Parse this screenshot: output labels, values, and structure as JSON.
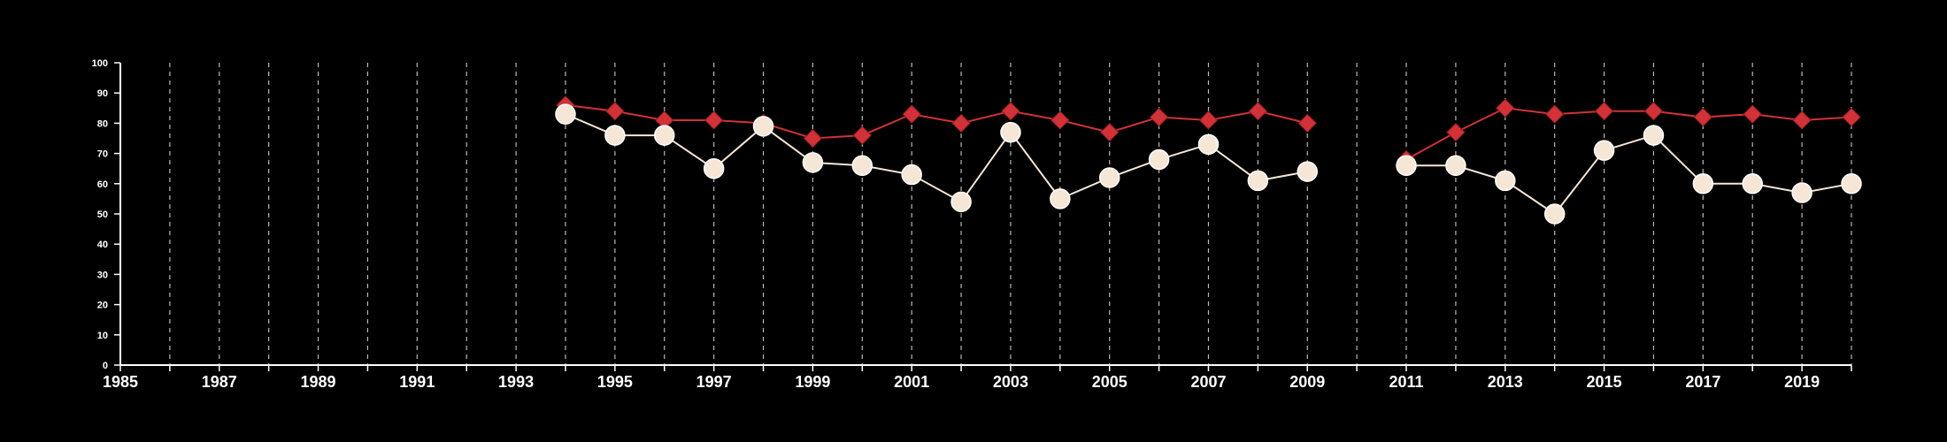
{
  "chart_data": {
    "type": "line",
    "title": "",
    "xlabel": "",
    "ylabel": "",
    "xlim": [
      1985,
      2020
    ],
    "ylim": [
      0,
      100
    ],
    "x_ticks": [
      1985,
      1987,
      1989,
      1991,
      1993,
      1995,
      1997,
      1999,
      2001,
      2003,
      2005,
      2007,
      2009,
      2011,
      2013,
      2015,
      2017,
      2019
    ],
    "y_ticks": [
      0,
      10,
      20,
      30,
      40,
      50,
      60,
      70,
      80,
      90,
      100
    ],
    "grid": "vertical dashed lines at every year",
    "legend": "none",
    "series": [
      {
        "marker": "diamond",
        "color": "#d03238",
        "x": [
          1994,
          1995,
          1996,
          1997,
          1998,
          1999,
          2000,
          2001,
          2002,
          2003,
          2004,
          2005,
          2006,
          2007,
          2008,
          2009,
          2011,
          2012,
          2013,
          2014,
          2015,
          2016,
          2017,
          2018,
          2019,
          2020
        ],
        "values": [
          86,
          84,
          81,
          81,
          80,
          75,
          76,
          83,
          80,
          84,
          81,
          77,
          82,
          81,
          84,
          80,
          68,
          77,
          85,
          83,
          84,
          84,
          82,
          83,
          81,
          82
        ]
      },
      {
        "marker": "circle",
        "color": "#f5e6d6",
        "x": [
          1994,
          1995,
          1996,
          1997,
          1998,
          1999,
          2000,
          2001,
          2002,
          2003,
          2004,
          2005,
          2006,
          2007,
          2008,
          2009,
          2011,
          2012,
          2013,
          2014,
          2015,
          2016,
          2017,
          2018,
          2019,
          2020
        ],
        "values": [
          83,
          76,
          76,
          65,
          79,
          67,
          66,
          63,
          54,
          77,
          55,
          62,
          68,
          73,
          61,
          64,
          66,
          66,
          61,
          50,
          71,
          76,
          60,
          60,
          57,
          60
        ]
      }
    ]
  }
}
